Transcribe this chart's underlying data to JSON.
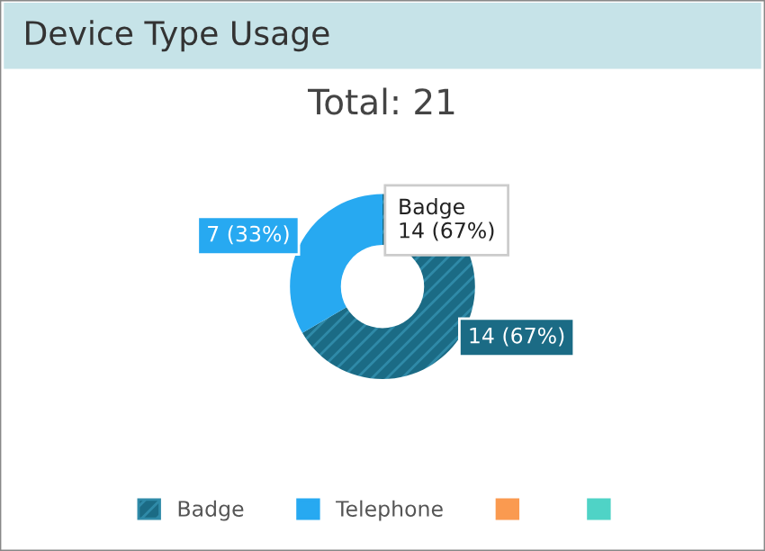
{
  "chart_data": {
    "type": "donut",
    "title": "Device Type Usage",
    "subtitle": "Total: 21",
    "categories": [
      "Badge",
      "Telephone",
      null,
      null
    ],
    "values": [
      14,
      7,
      0,
      0
    ],
    "colors": [
      "#1b6b85",
      "#27a9f1",
      "#fa9a50",
      "#4fd3c6"
    ],
    "value_labels": [
      "14 (67%)",
      "7 (33%)",
      null,
      null
    ],
    "annotations": [
      "Badge",
      "14 (67%)"
    ],
    "legend": "bottom"
  }
}
